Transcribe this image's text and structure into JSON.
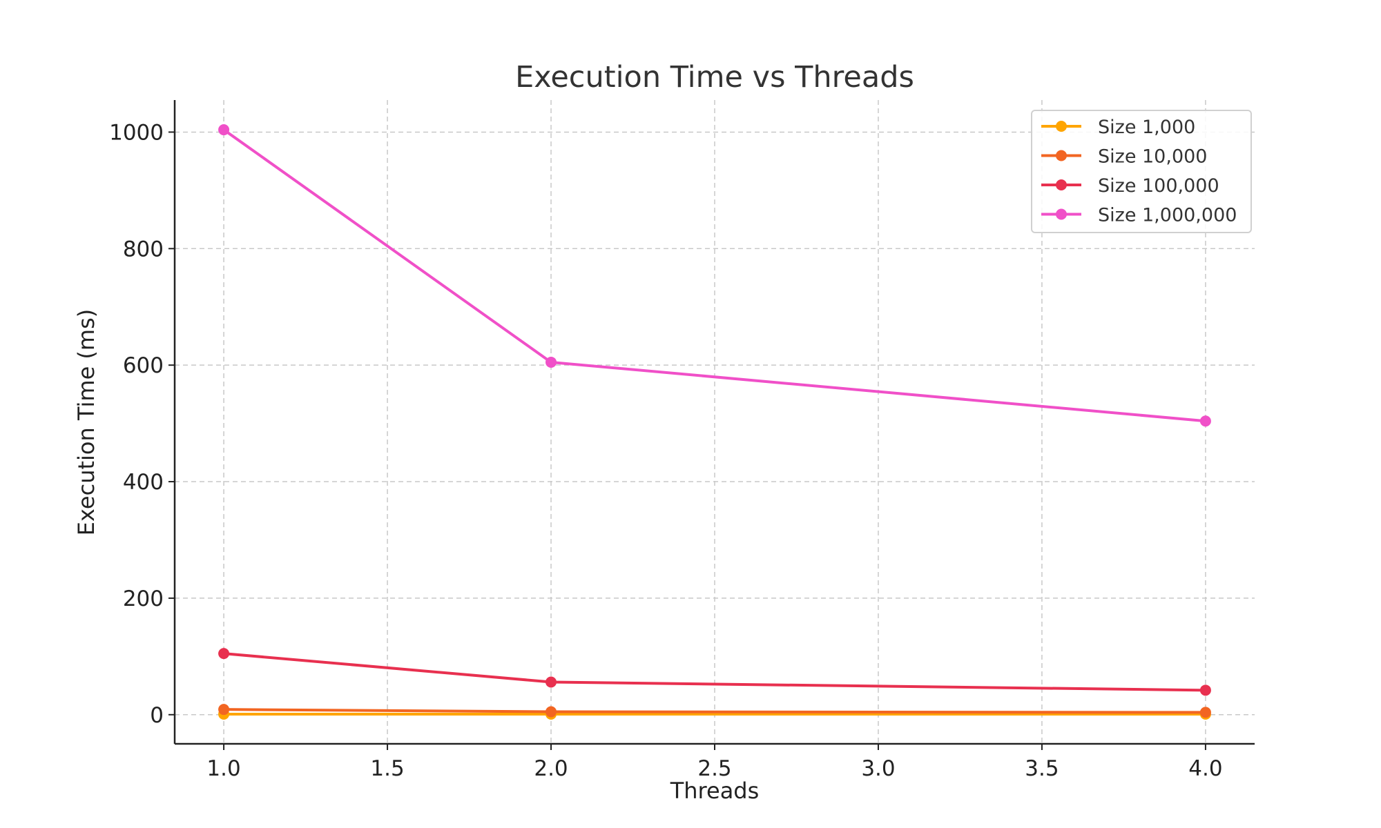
{
  "chart_data": {
    "type": "line",
    "title": "Execution Time vs Threads",
    "xlabel": "Threads",
    "ylabel": "Execution Time (ms)",
    "x": [
      1,
      2,
      4
    ],
    "xlim": [
      0.85,
      4.15
    ],
    "ylim": [
      -50,
      1055
    ],
    "xticks": [
      "1.0",
      "1.5",
      "2.0",
      "2.5",
      "3.0",
      "3.5",
      "4.0"
    ],
    "xtick_values": [
      1.0,
      1.5,
      2.0,
      2.5,
      3.0,
      3.5,
      4.0
    ],
    "yticks": [
      "0",
      "200",
      "400",
      "600",
      "800",
      "1000"
    ],
    "ytick_values": [
      0,
      200,
      400,
      600,
      800,
      1000
    ],
    "grid": true,
    "legend_position": "top-right",
    "series": [
      {
        "name": "Size 1,000",
        "color": "#FFA500",
        "values": [
          1,
          1,
          1
        ]
      },
      {
        "name": "Size 10,000",
        "color": "#F26522",
        "values": [
          9,
          5,
          4
        ]
      },
      {
        "name": "Size 100,000",
        "color": "#E8304F",
        "values": [
          105,
          56,
          42
        ]
      },
      {
        "name": "Size 1,000,000",
        "color": "#F050C8",
        "values": [
          1004,
          605,
          504
        ]
      }
    ]
  }
}
